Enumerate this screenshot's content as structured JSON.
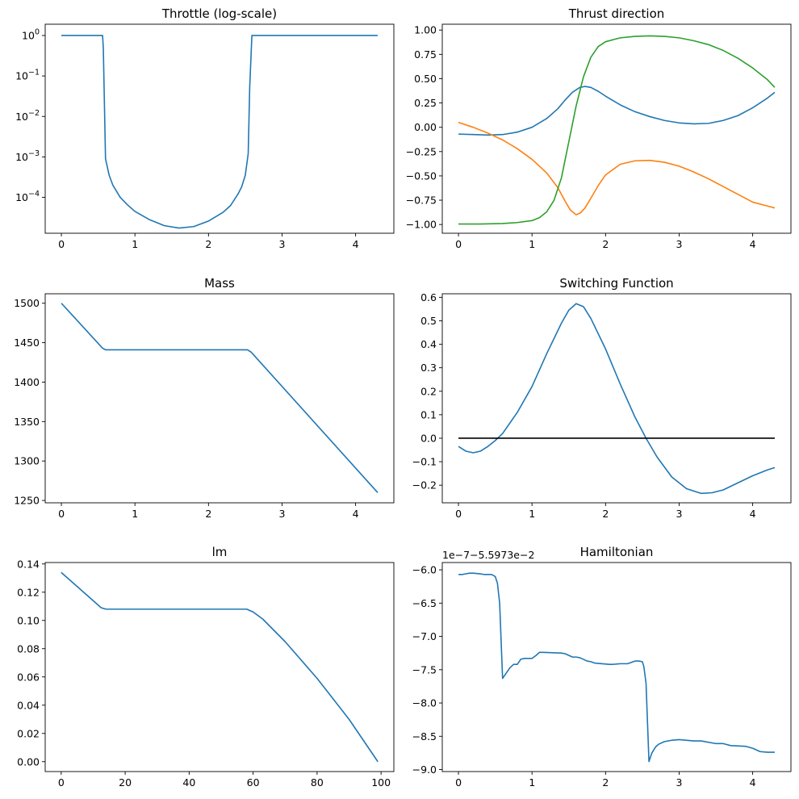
{
  "figure": {
    "background": "#ffffff"
  },
  "chart_data": [
    {
      "id": "throttle",
      "type": "line",
      "title": "Throttle (log-scale)",
      "yscale": "log",
      "xlim": [
        -0.22,
        4.52
      ],
      "ylim": [
        1.3e-05,
        1.9
      ],
      "xticks": [
        0,
        1,
        2,
        3,
        4
      ],
      "xticklabels": [
        "0",
        "1",
        "2",
        "3",
        "4"
      ],
      "yticks": [
        1,
        0.1,
        0.01,
        0.001,
        0.0001
      ],
      "yticklabels": [
        "10^0",
        "10^-1",
        "10^-2",
        "10^-3",
        "10^-4"
      ],
      "series": [
        {
          "color": "#1f77b4",
          "x": [
            0,
            0.3,
            0.56,
            0.57,
            0.6,
            0.65,
            0.7,
            0.8,
            0.9,
            1.0,
            1.2,
            1.4,
            1.6,
            1.8,
            2.0,
            2.2,
            2.3,
            2.4,
            2.45,
            2.5,
            2.54,
            2.56,
            2.59,
            3.0,
            3.5,
            4.0,
            4.3
          ],
          "y": [
            1,
            1,
            1,
            0.5,
            0.0009,
            0.00035,
            0.0002,
            0.0001,
            6.5e-05,
            4.5e-05,
            2.8e-05,
            2e-05,
            1.75e-05,
            1.9e-05,
            2.6e-05,
            4.3e-05,
            6.3e-05,
            0.00012,
            0.00018,
            0.00035,
            0.0012,
            0.05,
            1,
            1,
            1,
            1,
            1
          ]
        }
      ]
    },
    {
      "id": "thrust",
      "type": "line",
      "title": "Thrust direction",
      "xlim": [
        -0.22,
        4.52
      ],
      "ylim": [
        -1.09,
        1.06
      ],
      "xticks": [
        0,
        1,
        2,
        3,
        4
      ],
      "xticklabels": [
        "0",
        "1",
        "2",
        "3",
        "4"
      ],
      "yticks": [
        1.0,
        0.75,
        0.5,
        0.25,
        0.0,
        -0.25,
        -0.5,
        -0.75,
        -1.0
      ],
      "yticklabels": [
        "1.00",
        "0.75",
        "0.50",
        "0.25",
        "0.00",
        "−0.25",
        "−0.50",
        "−0.75",
        "−1.00"
      ],
      "series": [
        {
          "color": "#1f77b4",
          "x": [
            0,
            0.2,
            0.4,
            0.6,
            0.8,
            1.0,
            1.2,
            1.35,
            1.45,
            1.55,
            1.65,
            1.72,
            1.8,
            1.9,
            2.0,
            2.2,
            2.4,
            2.6,
            2.8,
            3.0,
            3.2,
            3.4,
            3.6,
            3.8,
            4.0,
            4.2,
            4.3
          ],
          "y": [
            -0.07,
            -0.075,
            -0.08,
            -0.075,
            -0.05,
            0.0,
            0.09,
            0.19,
            0.28,
            0.36,
            0.41,
            0.42,
            0.41,
            0.37,
            0.32,
            0.23,
            0.16,
            0.11,
            0.07,
            0.045,
            0.035,
            0.04,
            0.07,
            0.12,
            0.2,
            0.3,
            0.36
          ]
        },
        {
          "color": "#ff7f0e",
          "x": [
            0,
            0.2,
            0.4,
            0.6,
            0.8,
            1.0,
            1.2,
            1.35,
            1.45,
            1.52,
            1.6,
            1.66,
            1.72,
            1.8,
            1.9,
            2.0,
            2.2,
            2.4,
            2.6,
            2.8,
            3.0,
            3.2,
            3.4,
            3.6,
            3.8,
            4.0,
            4.2,
            4.3
          ],
          "y": [
            0.05,
            0.0,
            -0.06,
            -0.13,
            -0.22,
            -0.33,
            -0.47,
            -0.62,
            -0.76,
            -0.85,
            -0.9,
            -0.88,
            -0.83,
            -0.73,
            -0.6,
            -0.49,
            -0.38,
            -0.345,
            -0.34,
            -0.36,
            -0.4,
            -0.46,
            -0.53,
            -0.61,
            -0.69,
            -0.77,
            -0.81,
            -0.83
          ]
        },
        {
          "color": "#2ca02c",
          "x": [
            0,
            0.3,
            0.6,
            0.8,
            1.0,
            1.1,
            1.2,
            1.3,
            1.4,
            1.5,
            1.6,
            1.7,
            1.8,
            1.9,
            2.0,
            2.2,
            2.4,
            2.6,
            2.8,
            3.0,
            3.2,
            3.4,
            3.6,
            3.8,
            4.0,
            4.2,
            4.3
          ],
          "y": [
            -0.995,
            -0.995,
            -0.99,
            -0.98,
            -0.96,
            -0.93,
            -0.87,
            -0.75,
            -0.52,
            -0.15,
            0.22,
            0.52,
            0.72,
            0.83,
            0.88,
            0.92,
            0.935,
            0.94,
            0.935,
            0.92,
            0.89,
            0.85,
            0.79,
            0.71,
            0.61,
            0.49,
            0.41
          ]
        }
      ]
    },
    {
      "id": "mass",
      "type": "line",
      "title": "Mass",
      "xlim": [
        -0.22,
        4.52
      ],
      "ylim": [
        1247,
        1512
      ],
      "xticks": [
        0,
        1,
        2,
        3,
        4
      ],
      "xticklabels": [
        "0",
        "1",
        "2",
        "3",
        "4"
      ],
      "yticks": [
        1500,
        1450,
        1400,
        1350,
        1300,
        1250
      ],
      "yticklabels": [
        "1500",
        "1450",
        "1400",
        "1350",
        "1300",
        "1250"
      ],
      "series": [
        {
          "color": "#1f77b4",
          "x": [
            0,
            0.56,
            0.6,
            2.53,
            2.58,
            4.3
          ],
          "y": [
            1500,
            1443,
            1441,
            1441,
            1438,
            1260
          ]
        }
      ]
    },
    {
      "id": "switching",
      "type": "line",
      "title": "Switching Function",
      "xlim": [
        -0.22,
        4.52
      ],
      "ylim": [
        -0.275,
        0.615
      ],
      "xticks": [
        0,
        1,
        2,
        3,
        4
      ],
      "xticklabels": [
        "0",
        "1",
        "2",
        "3",
        "4"
      ],
      "yticks": [
        0.6,
        0.5,
        0.4,
        0.3,
        0.2,
        0.1,
        0.0,
        -0.1,
        -0.2
      ],
      "yticklabels": [
        "0.6",
        "0.5",
        "0.4",
        "0.3",
        "0.2",
        "0.1",
        "0.0",
        "−0.1",
        "−0.2"
      ],
      "series": [
        {
          "color": "#1f77b4",
          "x": [
            0,
            0.1,
            0.2,
            0.3,
            0.4,
            0.5,
            0.6,
            0.8,
            1.0,
            1.2,
            1.4,
            1.5,
            1.6,
            1.7,
            1.8,
            2.0,
            2.2,
            2.4,
            2.55,
            2.7,
            2.9,
            3.1,
            3.3,
            3.45,
            3.6,
            3.8,
            4.0,
            4.2,
            4.3
          ],
          "y": [
            -0.035,
            -0.055,
            -0.062,
            -0.055,
            -0.035,
            -0.01,
            0.02,
            0.11,
            0.22,
            0.36,
            0.49,
            0.545,
            0.573,
            0.56,
            0.51,
            0.38,
            0.23,
            0.09,
            0.0,
            -0.08,
            -0.165,
            -0.215,
            -0.235,
            -0.232,
            -0.22,
            -0.19,
            -0.16,
            -0.135,
            -0.125
          ]
        },
        {
          "color": "#000000",
          "x": [
            0,
            4.3
          ],
          "y": [
            0,
            0
          ]
        }
      ]
    },
    {
      "id": "lm",
      "type": "line",
      "title": "lm",
      "xlim": [
        -5,
        104
      ],
      "ylim": [
        -0.007,
        0.141
      ],
      "xticks": [
        0,
        20,
        40,
        60,
        80,
        100
      ],
      "xticklabels": [
        "0",
        "20",
        "40",
        "60",
        "80",
        "100"
      ],
      "yticks": [
        0.14,
        0.12,
        0.1,
        0.08,
        0.06,
        0.04,
        0.02,
        0.0
      ],
      "yticklabels": [
        "0.14",
        "0.12",
        "0.10",
        "0.08",
        "0.06",
        "0.04",
        "0.02",
        "0.00"
      ],
      "series": [
        {
          "color": "#1f77b4",
          "x": [
            0,
            12.5,
            14,
            58,
            60,
            63,
            70,
            80,
            90,
            99
          ],
          "y": [
            0.134,
            0.109,
            0.108,
            0.108,
            0.106,
            0.101,
            0.085,
            0.059,
            0.03,
            0.0
          ]
        }
      ]
    },
    {
      "id": "hamiltonian",
      "type": "line",
      "title": "Hamiltonian",
      "offset_label": "1e−7−5.5973e−2",
      "xlim": [
        -0.22,
        4.52
      ],
      "ylim": [
        -9.03,
        -5.89
      ],
      "xticks": [
        0,
        1,
        2,
        3,
        4
      ],
      "xticklabels": [
        "0",
        "1",
        "2",
        "3",
        "4"
      ],
      "yticks": [
        -6.0,
        -6.5,
        -7.0,
        -7.5,
        -8.0,
        -8.5,
        -9.0
      ],
      "yticklabels": [
        "−6.0",
        "−6.5",
        "−7.0",
        "−7.5",
        "−8.0",
        "−8.5",
        "−9.0"
      ],
      "series": [
        {
          "color": "#1f77b4",
          "x": [
            0,
            0.05,
            0.1,
            0.15,
            0.2,
            0.3,
            0.35,
            0.4,
            0.45,
            0.5,
            0.53,
            0.56,
            0.6,
            0.65,
            0.7,
            0.75,
            0.8,
            0.85,
            0.9,
            1.0,
            1.05,
            1.1,
            1.15,
            1.4,
            1.45,
            1.55,
            1.6,
            1.65,
            1.75,
            1.8,
            1.85,
            2.05,
            2.1,
            2.2,
            2.3,
            2.4,
            2.45,
            2.5,
            2.52,
            2.55,
            2.59,
            2.63,
            2.68,
            2.72,
            2.8,
            2.9,
            3.0,
            3.2,
            3.3,
            3.5,
            3.6,
            3.7,
            3.9,
            4.0,
            4.1,
            4.2,
            4.3
          ],
          "y": [
            -6.07,
            -6.07,
            -6.06,
            -6.05,
            -6.05,
            -6.06,
            -6.07,
            -6.07,
            -6.07,
            -6.1,
            -6.2,
            -6.5,
            -7.63,
            -7.55,
            -7.47,
            -7.42,
            -7.42,
            -7.34,
            -7.33,
            -7.33,
            -7.29,
            -7.24,
            -7.24,
            -7.25,
            -7.26,
            -7.31,
            -7.31,
            -7.32,
            -7.37,
            -7.38,
            -7.4,
            -7.42,
            -7.42,
            -7.41,
            -7.41,
            -7.37,
            -7.37,
            -7.38,
            -7.45,
            -7.7,
            -8.88,
            -8.75,
            -8.66,
            -8.62,
            -8.58,
            -8.56,
            -8.55,
            -8.57,
            -8.57,
            -8.61,
            -8.61,
            -8.64,
            -8.65,
            -8.68,
            -8.73,
            -8.74,
            -8.74
          ]
        }
      ]
    }
  ]
}
